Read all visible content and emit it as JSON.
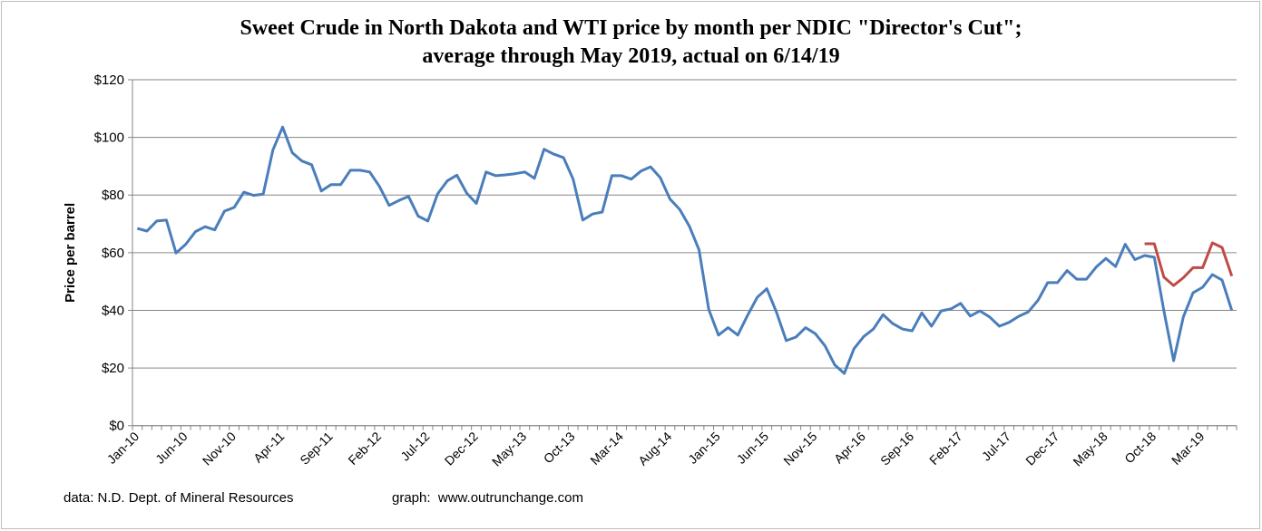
{
  "chart_data": {
    "type": "line",
    "title": "Sweet Crude in North Dakota and WTI price by month per NDIC \"Director's Cut\";",
    "subtitle": "average through May 2019, actual on 6/14/19",
    "xlabel": "",
    "ylabel": "Price per barrel",
    "x_start": "Jan-10",
    "x_frequency": "monthly",
    "x_tick_labels": [
      "Jan-10",
      "Jun-10",
      "Nov-10",
      "Apr-11",
      "Sep-11",
      "Feb-12",
      "Jul-12",
      "Dec-12",
      "May-13",
      "Oct-13",
      "Mar-14",
      "Aug-14",
      "Jan-15",
      "Jun-15",
      "Nov-15",
      "Apr-16",
      "Sep-16",
      "Feb-17",
      "Jul-17",
      "Dec-17",
      "May-18",
      "Oct-18",
      "Mar-19"
    ],
    "x_tick_every": 5,
    "y_ticks": [
      "$0",
      "$20",
      "$40",
      "$60",
      "$80",
      "$100",
      "$120"
    ],
    "ylim": [
      0,
      120
    ],
    "grid": true,
    "legend": "none",
    "series": [
      {
        "name": "Sweet Crude in North Dakota",
        "color": "#4a7ebb",
        "values": [
          68.4,
          67.5,
          71.0,
          71.3,
          59.9,
          62.9,
          67.3,
          69.0,
          67.9,
          74.4,
          75.7,
          81.0,
          79.9,
          80.3,
          95.6,
          103.6,
          94.7,
          91.8,
          90.5,
          81.4,
          83.6,
          83.6,
          88.6,
          88.6,
          88.0,
          83.0,
          76.4,
          78.1,
          79.5,
          72.7,
          71.0,
          80.4,
          84.9,
          86.9,
          80.7,
          77.1,
          88.0,
          86.7,
          87.0,
          87.4,
          88.0,
          85.8,
          95.9,
          94.2,
          93.0,
          85.5,
          71.3,
          73.4,
          74.1,
          86.7,
          86.7,
          85.5,
          88.3,
          89.8,
          86.0,
          78.6,
          75.0,
          69.2,
          61.0,
          40.3,
          31.4,
          34.0,
          31.4,
          38.2,
          44.5,
          47.5,
          39.3,
          29.5,
          30.7,
          34.0,
          31.9,
          27.7,
          21.1,
          18.1,
          26.7,
          30.9,
          33.5,
          38.5,
          35.4,
          33.5,
          32.9,
          39.1,
          34.5,
          39.8,
          40.5,
          42.4,
          38.0,
          39.8,
          37.7,
          34.5,
          35.8,
          37.9,
          39.5,
          43.5,
          49.6,
          49.6,
          53.8,
          50.8,
          50.8,
          55.0,
          58.0,
          55.2,
          62.9,
          57.6,
          59.0,
          58.4,
          39.8,
          22.5,
          37.7,
          46.1,
          48.0,
          52.4,
          50.5,
          40.0
        ]
      },
      {
        "name": "WTI",
        "color": "#be4b48",
        "start_index": 104,
        "values": [
          63.1,
          63.1,
          51.5,
          48.6,
          51.3,
          54.8,
          54.8,
          63.4,
          61.8,
          51.9
        ]
      }
    ]
  },
  "footer": {
    "source": "data: N.D. Dept. of Mineral Resources",
    "credit": "graph:  www.outrunchange.com"
  }
}
